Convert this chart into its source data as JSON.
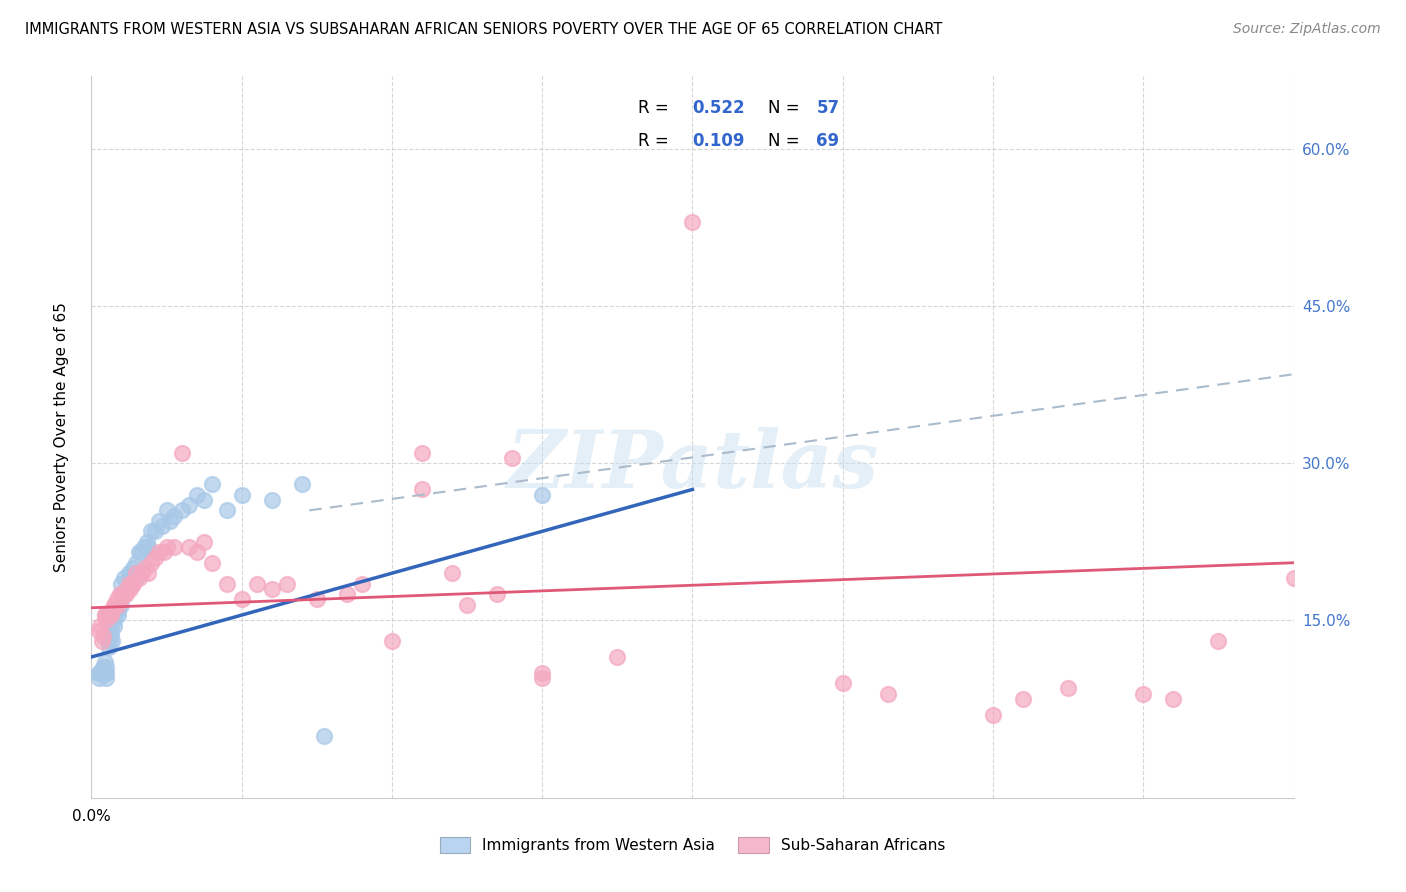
{
  "title": "IMMIGRANTS FROM WESTERN ASIA VS SUBSAHARAN AFRICAN SENIORS POVERTY OVER THE AGE OF 65 CORRELATION CHART",
  "source": "Source: ZipAtlas.com",
  "ylabel": "Seniors Poverty Over the Age of 65",
  "ytick_labels": [
    "15.0%",
    "30.0%",
    "45.0%",
    "60.0%"
  ],
  "ytick_values": [
    0.15,
    0.3,
    0.45,
    0.6
  ],
  "xlim": [
    0.0,
    0.8
  ],
  "ylim": [
    -0.02,
    0.67
  ],
  "watermark": "ZIPatlas",
  "color_blue": "#a8c8e8",
  "color_pink": "#f4a8c0",
  "line_blue": "#3366bb",
  "line_pink": "#e05878",
  "line_dashed": "#aabbcc",
  "legend_box_blue": "#b8d4f0",
  "legend_box_pink": "#f4b8cc",
  "blue_line_x0": 0.0,
  "blue_line_y0": 0.115,
  "blue_line_x1": 0.4,
  "blue_line_y1": 0.275,
  "pink_line_x0": 0.0,
  "pink_line_y0": 0.162,
  "pink_line_x1": 0.8,
  "pink_line_y1": 0.205,
  "dash_line_x0": 0.145,
  "dash_line_y0": 0.255,
  "dash_line_x1": 0.8,
  "dash_line_y1": 0.385,
  "blue_scatter_x": [
    0.005,
    0.005,
    0.005,
    0.006,
    0.007,
    0.008,
    0.008,
    0.009,
    0.009,
    0.01,
    0.01,
    0.01,
    0.012,
    0.012,
    0.013,
    0.013,
    0.014,
    0.015,
    0.015,
    0.016,
    0.017,
    0.018,
    0.018,
    0.02,
    0.02,
    0.02,
    0.022,
    0.023,
    0.025,
    0.025,
    0.027,
    0.028,
    0.03,
    0.03,
    0.032,
    0.033,
    0.035,
    0.037,
    0.038,
    0.04,
    0.042,
    0.045,
    0.047,
    0.05,
    0.052,
    0.055,
    0.06,
    0.065,
    0.07,
    0.075,
    0.08,
    0.09,
    0.1,
    0.12,
    0.14,
    0.155,
    0.3
  ],
  "blue_scatter_y": [
    0.1,
    0.1,
    0.095,
    0.1,
    0.1,
    0.1,
    0.105,
    0.1,
    0.11,
    0.1,
    0.105,
    0.095,
    0.125,
    0.13,
    0.14,
    0.135,
    0.13,
    0.15,
    0.145,
    0.155,
    0.16,
    0.155,
    0.16,
    0.185,
    0.175,
    0.165,
    0.19,
    0.18,
    0.195,
    0.185,
    0.195,
    0.2,
    0.205,
    0.19,
    0.215,
    0.215,
    0.22,
    0.225,
    0.22,
    0.235,
    0.235,
    0.245,
    0.24,
    0.255,
    0.245,
    0.25,
    0.255,
    0.26,
    0.27,
    0.265,
    0.28,
    0.255,
    0.27,
    0.265,
    0.28,
    0.04,
    0.27
  ],
  "pink_scatter_x": [
    0.005,
    0.006,
    0.007,
    0.008,
    0.009,
    0.009,
    0.01,
    0.011,
    0.012,
    0.013,
    0.014,
    0.015,
    0.016,
    0.017,
    0.018,
    0.019,
    0.02,
    0.021,
    0.022,
    0.023,
    0.024,
    0.025,
    0.026,
    0.027,
    0.028,
    0.03,
    0.032,
    0.034,
    0.036,
    0.038,
    0.04,
    0.042,
    0.045,
    0.048,
    0.05,
    0.055,
    0.06,
    0.065,
    0.07,
    0.075,
    0.08,
    0.09,
    0.1,
    0.11,
    0.12,
    0.13,
    0.15,
    0.17,
    0.18,
    0.2,
    0.22,
    0.24,
    0.25,
    0.27,
    0.3,
    0.3,
    0.35,
    0.4,
    0.5,
    0.53,
    0.6,
    0.62,
    0.65,
    0.7,
    0.72,
    0.75,
    0.8,
    0.22,
    0.28
  ],
  "pink_scatter_y": [
    0.14,
    0.145,
    0.13,
    0.135,
    0.155,
    0.155,
    0.15,
    0.155,
    0.155,
    0.155,
    0.16,
    0.165,
    0.165,
    0.17,
    0.165,
    0.175,
    0.17,
    0.175,
    0.175,
    0.175,
    0.18,
    0.185,
    0.18,
    0.185,
    0.185,
    0.195,
    0.19,
    0.195,
    0.2,
    0.195,
    0.205,
    0.21,
    0.215,
    0.215,
    0.22,
    0.22,
    0.31,
    0.22,
    0.215,
    0.225,
    0.205,
    0.185,
    0.17,
    0.185,
    0.18,
    0.185,
    0.17,
    0.175,
    0.185,
    0.13,
    0.31,
    0.195,
    0.165,
    0.175,
    0.095,
    0.1,
    0.115,
    0.53,
    0.09,
    0.08,
    0.06,
    0.075,
    0.085,
    0.08,
    0.075,
    0.13,
    0.19,
    0.275,
    0.305
  ]
}
